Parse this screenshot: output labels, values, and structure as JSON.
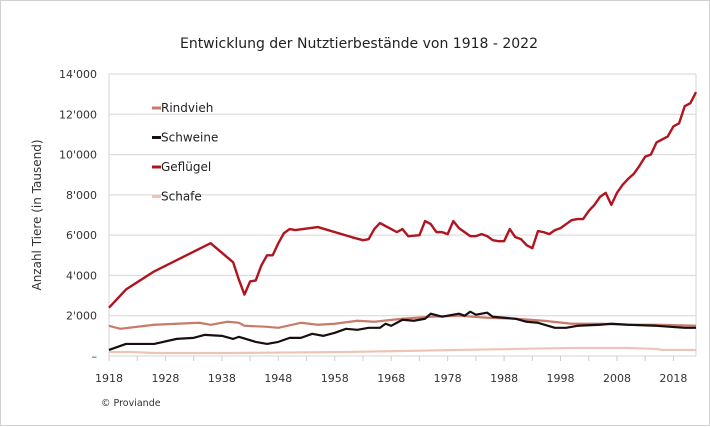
{
  "chart_data": {
    "type": "line",
    "title": "Entwicklung der Nutztierbestände von 1918 - 2022",
    "xlabel": "",
    "ylabel": "Anzahl Tiere (in Tausend)",
    "xlim": [
      1918,
      2022
    ],
    "ylim": [
      0,
      14000
    ],
    "x_tick_labels": [
      "1918",
      "1928",
      "1938",
      "1948",
      "1958",
      "1968",
      "1978",
      "1988",
      "1998",
      "2008",
      "2018"
    ],
    "y_tick_labels": [
      "–",
      "2'000",
      "4'000",
      "6'000",
      "8'000",
      "10'000",
      "12'000",
      "14'000"
    ],
    "y_tick_values": [
      0,
      2000,
      4000,
      6000,
      8000,
      10000,
      12000,
      14000
    ],
    "grid": "horizontal",
    "legend_position": "top-left",
    "credit": "© Proviande",
    "series": [
      {
        "name": "Rindvieh",
        "color": "#c97b6a",
        "points": [
          [
            1918,
            1500
          ],
          [
            1920,
            1350
          ],
          [
            1926,
            1550
          ],
          [
            1934,
            1650
          ],
          [
            1936,
            1550
          ],
          [
            1939,
            1700
          ],
          [
            1941,
            1650
          ],
          [
            1942,
            1500
          ],
          [
            1946,
            1450
          ],
          [
            1948,
            1400
          ],
          [
            1952,
            1650
          ],
          [
            1955,
            1550
          ],
          [
            1958,
            1600
          ],
          [
            1962,
            1750
          ],
          [
            1965,
            1700
          ],
          [
            1970,
            1850
          ],
          [
            1975,
            1950
          ],
          [
            1980,
            2000
          ],
          [
            1985,
            1900
          ],
          [
            1990,
            1850
          ],
          [
            1995,
            1750
          ],
          [
            2000,
            1600
          ],
          [
            2005,
            1600
          ],
          [
            2010,
            1550
          ],
          [
            2015,
            1550
          ],
          [
            2022,
            1500
          ]
        ]
      },
      {
        "name": "Schweine",
        "color": "#1a0f0f",
        "points": [
          [
            1918,
            300
          ],
          [
            1921,
            600
          ],
          [
            1926,
            600
          ],
          [
            1930,
            850
          ],
          [
            1933,
            900
          ],
          [
            1935,
            1050
          ],
          [
            1938,
            1000
          ],
          [
            1940,
            850
          ],
          [
            1941,
            950
          ],
          [
            1944,
            700
          ],
          [
            1946,
            600
          ],
          [
            1948,
            700
          ],
          [
            1950,
            900
          ],
          [
            1952,
            900
          ],
          [
            1954,
            1100
          ],
          [
            1956,
            1000
          ],
          [
            1958,
            1150
          ],
          [
            1960,
            1350
          ],
          [
            1962,
            1300
          ],
          [
            1964,
            1400
          ],
          [
            1966,
            1400
          ],
          [
            1967,
            1600
          ],
          [
            1968,
            1500
          ],
          [
            1970,
            1800
          ],
          [
            1972,
            1750
          ],
          [
            1974,
            1850
          ],
          [
            1975,
            2100
          ],
          [
            1977,
            1950
          ],
          [
            1980,
            2100
          ],
          [
            1981,
            2000
          ],
          [
            1982,
            2200
          ],
          [
            1983,
            2050
          ],
          [
            1985,
            2150
          ],
          [
            1986,
            1950
          ],
          [
            1988,
            1900
          ],
          [
            1990,
            1850
          ],
          [
            1992,
            1700
          ],
          [
            1994,
            1650
          ],
          [
            1997,
            1400
          ],
          [
            1999,
            1400
          ],
          [
            2001,
            1500
          ],
          [
            2005,
            1550
          ],
          [
            2007,
            1600
          ],
          [
            2010,
            1550
          ],
          [
            2015,
            1500
          ],
          [
            2020,
            1400
          ],
          [
            2022,
            1400
          ]
        ]
      },
      {
        "name": "Geflügel",
        "color": "#b0141f",
        "points": [
          [
            1918,
            2400
          ],
          [
            1921,
            3300
          ],
          [
            1926,
            4200
          ],
          [
            1936,
            5600
          ],
          [
            1940,
            4650
          ],
          [
            1941,
            3800
          ],
          [
            1942,
            3050
          ],
          [
            1943,
            3700
          ],
          [
            1944,
            3750
          ],
          [
            1945,
            4500
          ],
          [
            1946,
            5000
          ],
          [
            1947,
            5000
          ],
          [
            1948,
            5600
          ],
          [
            1949,
            6100
          ],
          [
            1950,
            6300
          ],
          [
            1951,
            6250
          ],
          [
            1955,
            6400
          ],
          [
            1961,
            5900
          ],
          [
            1963,
            5750
          ],
          [
            1964,
            5800
          ],
          [
            1965,
            6300
          ],
          [
            1966,
            6600
          ],
          [
            1968,
            6300
          ],
          [
            1969,
            6150
          ],
          [
            1970,
            6300
          ],
          [
            1971,
            5950
          ],
          [
            1973,
            6000
          ],
          [
            1974,
            6700
          ],
          [
            1975,
            6550
          ],
          [
            1976,
            6150
          ],
          [
            1977,
            6150
          ],
          [
            1978,
            6050
          ],
          [
            1979,
            6700
          ],
          [
            1980,
            6350
          ],
          [
            1981,
            6150
          ],
          [
            1982,
            5950
          ],
          [
            1983,
            5950
          ],
          [
            1984,
            6050
          ],
          [
            1985,
            5950
          ],
          [
            1986,
            5750
          ],
          [
            1987,
            5700
          ],
          [
            1988,
            5700
          ],
          [
            1989,
            6300
          ],
          [
            1990,
            5900
          ],
          [
            1991,
            5800
          ],
          [
            1992,
            5500
          ],
          [
            1993,
            5350
          ],
          [
            1994,
            6200
          ],
          [
            1995,
            6150
          ],
          [
            1996,
            6050
          ],
          [
            1997,
            6250
          ],
          [
            1998,
            6350
          ],
          [
            1999,
            6550
          ],
          [
            2000,
            6750
          ],
          [
            2001,
            6800
          ],
          [
            2002,
            6800
          ],
          [
            2003,
            7200
          ],
          [
            2004,
            7500
          ],
          [
            2005,
            7900
          ],
          [
            2006,
            8100
          ],
          [
            2007,
            7500
          ],
          [
            2008,
            8100
          ],
          [
            2009,
            8500
          ],
          [
            2010,
            8800
          ],
          [
            2011,
            9050
          ],
          [
            2012,
            9450
          ],
          [
            2013,
            9900
          ],
          [
            2014,
            10000
          ],
          [
            2015,
            10600
          ],
          [
            2016,
            10750
          ],
          [
            2017,
            10900
          ],
          [
            2018,
            11400
          ],
          [
            2019,
            11550
          ],
          [
            2020,
            12400
          ],
          [
            2021,
            12550
          ],
          [
            2022,
            13100
          ]
        ]
      },
      {
        "name": "Schafe",
        "color": "#efc4b4",
        "points": [
          [
            1918,
            200
          ],
          [
            1922,
            200
          ],
          [
            1926,
            150
          ],
          [
            1940,
            150
          ],
          [
            1960,
            200
          ],
          [
            1970,
            250
          ],
          [
            1980,
            300
          ],
          [
            1990,
            350
          ],
          [
            2000,
            400
          ],
          [
            2010,
            400
          ],
          [
            2015,
            350
          ],
          [
            2016,
            300
          ],
          [
            2022,
            300
          ]
        ]
      }
    ]
  }
}
